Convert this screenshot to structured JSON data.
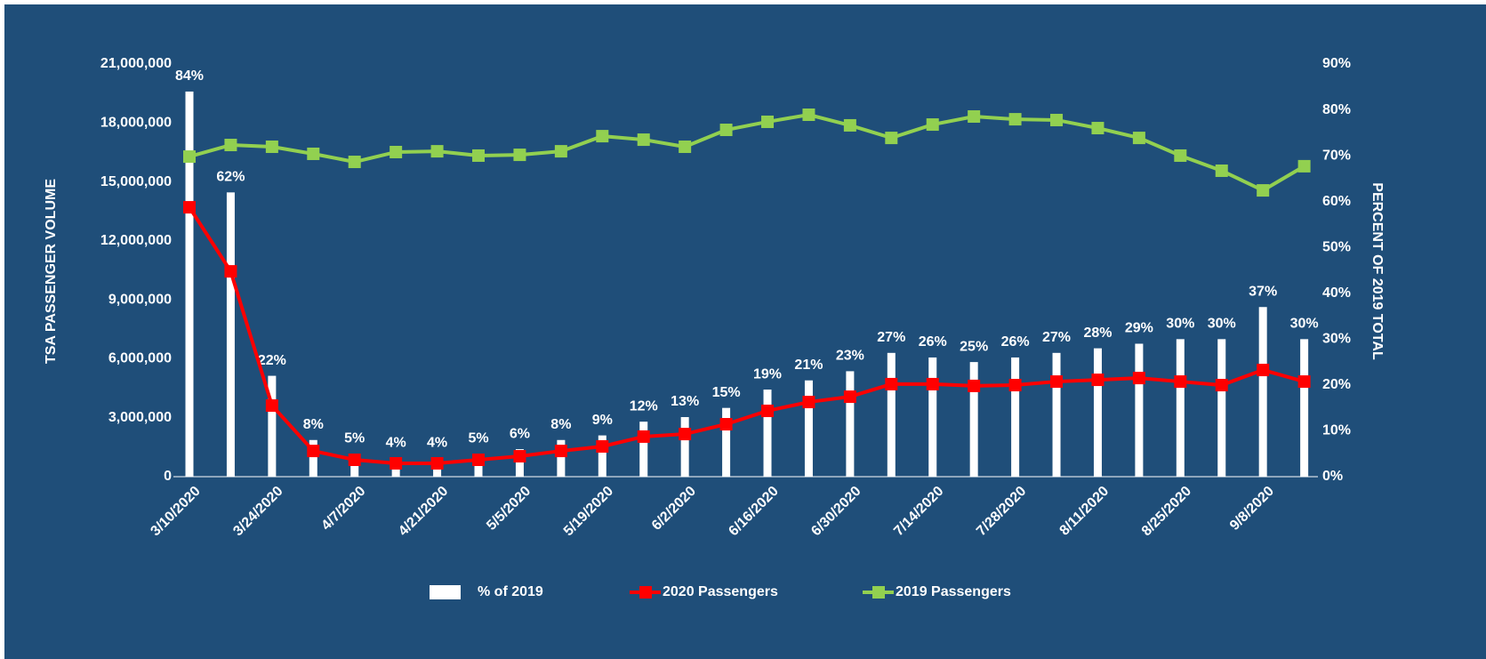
{
  "chart_data": {
    "type": "combo",
    "categories": [
      "3/10/2020",
      null,
      "3/24/2020",
      null,
      "4/7/2020",
      null,
      "4/21/2020",
      null,
      "5/5/2020",
      null,
      "5/19/2020",
      null,
      "6/2/2020",
      null,
      "6/16/2020",
      null,
      "6/30/2020",
      null,
      "7/14/2020",
      null,
      "7/28/2020",
      null,
      "8/11/2020",
      null,
      "8/25/2020",
      null,
      "9/8/2020",
      null
    ],
    "ylabel": "TSA PASSENGER VOLUME",
    "y2label": "PERCENT OF 2019 TOTAL",
    "ylim": [
      0,
      21000000
    ],
    "yticks": [
      0,
      {
        "value": 3000000,
        "label": "3,000,000"
      },
      {
        "value": 6000000,
        "label": "6,000,000"
      },
      {
        "value": 9000000,
        "label": "9,000,000"
      },
      {
        "value": 12000000,
        "label": "12,000,000"
      },
      {
        "value": 15000000,
        "label": "15,000,000"
      },
      {
        "value": 18000000,
        "label": "18,000,000"
      },
      {
        "value": 21000000,
        "label": "21,000,000"
      }
    ],
    "y2lim": [
      0,
      90
    ],
    "y2ticks": [
      {
        "value": 0,
        "label": "0%"
      },
      {
        "value": 10,
        "label": "10%"
      },
      {
        "value": 20,
        "label": "20%"
      },
      {
        "value": 30,
        "label": "30%"
      },
      {
        "value": 40,
        "label": "40%"
      },
      {
        "value": 50,
        "label": "50%"
      },
      {
        "value": 60,
        "label": "60%"
      },
      {
        "value": 70,
        "label": "70%"
      },
      {
        "value": 80,
        "label": "80%"
      },
      {
        "value": 90,
        "label": "90%"
      }
    ],
    "series": [
      {
        "name": "% of 2019",
        "type": "bar",
        "axis": "y2",
        "color": "#ffffff",
        "values": [
          84,
          62,
          22,
          8,
          5,
          4,
          4,
          5,
          6,
          8,
          9,
          12,
          13,
          15,
          19,
          21,
          23,
          27,
          26,
          25,
          26,
          27,
          28,
          29,
          30,
          30,
          37,
          30
        ],
        "value_labels": [
          "84%",
          "62%",
          "22%",
          "8%",
          "5%",
          "4%",
          "4%",
          "5%",
          "6%",
          "8%",
          "9%",
          "12%",
          "13%",
          "15%",
          "19%",
          "21%",
          "23%",
          "27%",
          "26%",
          "25%",
          "26%",
          "27%",
          "28%",
          "29%",
          "30%",
          "30%",
          "37%",
          "30%"
        ]
      },
      {
        "name": "2020 Passengers",
        "type": "line",
        "color": "#ff0000",
        "values": [
          13710000,
          10450000,
          3620000,
          1310000,
          860000,
          680000,
          680000,
          860000,
          1040000,
          1310000,
          1540000,
          2040000,
          2170000,
          2670000,
          3350000,
          3800000,
          4070000,
          4710000,
          4710000,
          4620000,
          4660000,
          4840000,
          4930000,
          5020000,
          4840000,
          4660000,
          5430000,
          4840000
        ]
      },
      {
        "name": "2019 Passengers",
        "type": "line",
        "color": "#92d050",
        "values": [
          16290000,
          16880000,
          16790000,
          16430000,
          16020000,
          16520000,
          16560000,
          16340000,
          16380000,
          16560000,
          17330000,
          17150000,
          16790000,
          17650000,
          18060000,
          18420000,
          17880000,
          17240000,
          17920000,
          18330000,
          18190000,
          18150000,
          17740000,
          17240000,
          16340000,
          15570000,
          14570000,
          15800000
        ]
      }
    ]
  }
}
